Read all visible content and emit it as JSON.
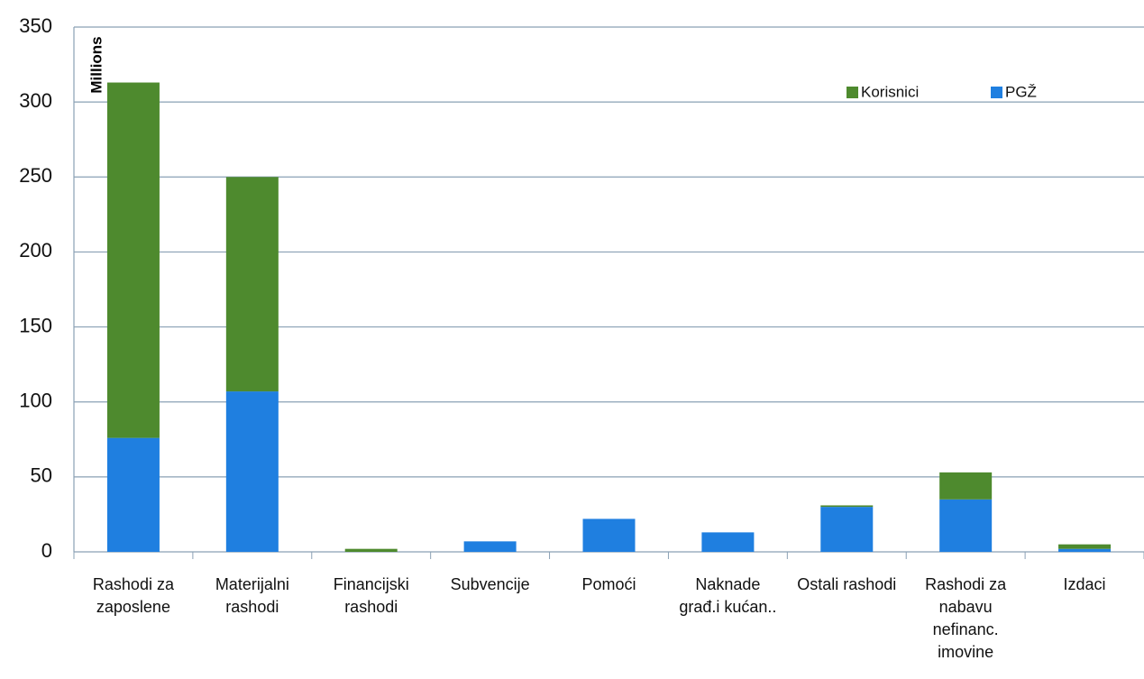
{
  "chart_data": {
    "type": "stacked_bar",
    "y_label": "Millions",
    "categories": [
      "Rashodi za zaposlene",
      "Materijalni rashodi",
      "Financijski rashodi",
      "Subvencije",
      "Pomoći",
      "Naknade građ.i kućan..",
      "Ostali rashodi",
      "Rashodi za nabavu nefinanc. imovine",
      "Izdaci"
    ],
    "series": [
      {
        "name": "PGŽ",
        "color": "#1f7fe0",
        "values": [
          76,
          107,
          0,
          7,
          22,
          13,
          30,
          35,
          2
        ]
      },
      {
        "name": "Korisnici",
        "color": "#4e8a2e",
        "values": [
          237,
          143,
          2,
          0,
          0,
          0,
          1,
          18,
          3
        ]
      }
    ],
    "ylim": [
      0,
      350
    ],
    "yticks": [
      0,
      50,
      100,
      150,
      200,
      250,
      300,
      350
    ],
    "grid": true,
    "legend": "top-right"
  }
}
